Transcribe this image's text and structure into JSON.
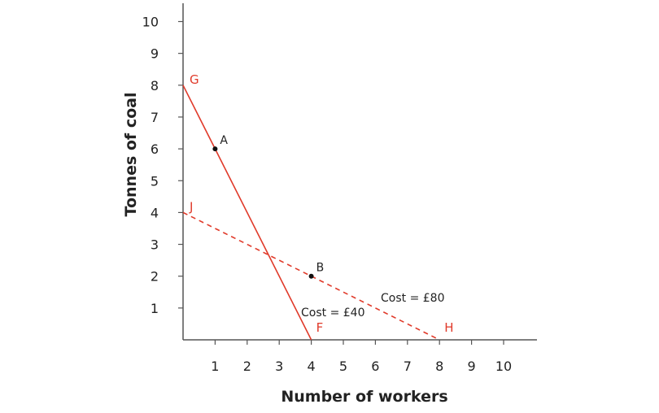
{
  "chart_data": {
    "type": "line",
    "xlabel": "Number of workers",
    "ylabel": "Tonnes of coal",
    "xlim": [
      0,
      11
    ],
    "ylim": [
      0,
      10.5
    ],
    "xticks": [
      1,
      2,
      3,
      4,
      5,
      6,
      7,
      8,
      9,
      10
    ],
    "yticks": [
      1,
      2,
      3,
      4,
      5,
      6,
      7,
      8,
      9,
      10
    ],
    "grid": false,
    "colors": {
      "line": "#e03a2a",
      "axis": "#555555",
      "text": "#222222"
    },
    "series": [
      {
        "label": "Cost = £40",
        "style": "solid",
        "points": [
          [
            0,
            8
          ],
          [
            4,
            0
          ]
        ],
        "start_label": "G",
        "end_label": "F"
      },
      {
        "label": "Cost = £80",
        "style": "dashed",
        "points": [
          [
            0,
            4
          ],
          [
            8,
            0
          ]
        ],
        "start_label": "J",
        "end_label": "H"
      }
    ],
    "points": [
      {
        "label": "A",
        "x": 1,
        "y": 6
      },
      {
        "label": "B",
        "x": 4,
        "y": 2
      }
    ]
  }
}
